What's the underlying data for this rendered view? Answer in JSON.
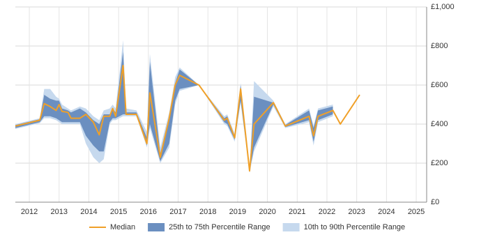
{
  "chart_data": {
    "type": "line",
    "x": [
      2011.53,
      2012.35,
      2012.5,
      2012.7,
      2012.9,
      2013.0,
      2013.1,
      2013.3,
      2013.4,
      2013.7,
      2013.9,
      2014.15,
      2014.35,
      2014.5,
      2014.7,
      2014.8,
      2014.9,
      2015.15,
      2015.25,
      2015.6,
      2015.95,
      2016.05,
      2016.4,
      2016.7,
      2016.9,
      2017.05,
      2017.7,
      2018.55,
      2018.65,
      2018.9,
      2019.1,
      2019.4,
      2019.55,
      2020.2,
      2020.6,
      2021.4,
      2021.55,
      2021.7,
      2022.2,
      2022.45,
      2023.1
    ],
    "series": [
      {
        "name": "10th to 90th Percentile Range",
        "color": "#c6d9ee",
        "low": [
          375,
          405,
          430,
          430,
          420,
          410,
          400,
          400,
          400,
          400,
          300,
          230,
          200,
          220,
          400,
          420,
          420,
          440,
          440,
          440,
          280,
          380,
          200,
          280,
          500,
          570,
          600,
          400,
          390,
          310,
          510,
          150,
          260,
          490,
          380,
          410,
          290,
          410,
          440,
          null,
          null
        ],
        "high": [
          400,
          430,
          580,
          580,
          540,
          530,
          500,
          480,
          470,
          490,
          480,
          440,
          420,
          470,
          480,
          500,
          480,
          830,
          480,
          470,
          360,
          760,
          280,
          460,
          640,
          690,
          600,
          440,
          450,
          350,
          610,
          170,
          620,
          520,
          400,
          480,
          390,
          480,
          500,
          null,
          null
        ]
      },
      {
        "name": "25th to 75th Percentile Range",
        "color": "#6b8fc0",
        "low": [
          380,
          410,
          440,
          440,
          430,
          420,
          410,
          410,
          410,
          410,
          340,
          290,
          260,
          260,
          410,
          430,
          430,
          450,
          450,
          450,
          290,
          400,
          210,
          300,
          520,
          580,
          600,
          410,
          400,
          320,
          520,
          160,
          280,
          500,
          385,
          420,
          310,
          420,
          450,
          null,
          null
        ],
        "high": [
          395,
          425,
          550,
          530,
          520,
          520,
          480,
          470,
          460,
          480,
          460,
          420,
          400,
          450,
          450,
          480,
          460,
          770,
          460,
          460,
          330,
          720,
          250,
          440,
          610,
          680,
          600,
          430,
          440,
          340,
          600,
          160,
          540,
          510,
          395,
          470,
          380,
          470,
          490,
          null,
          null
        ]
      },
      {
        "name": "Median",
        "color": "#f0a028",
        "values": [
          390,
          420,
          505,
          490,
          470,
          500,
          465,
          460,
          430,
          430,
          450,
          410,
          345,
          440,
          440,
          480,
          440,
          700,
          450,
          450,
          300,
          560,
          230,
          430,
          600,
          650,
          600,
          420,
          430,
          330,
          580,
          160,
          400,
          510,
          390,
          440,
          340,
          440,
          470,
          400,
          550
        ]
      }
    ],
    "xlim": [
      2011.53,
      2025.35
    ],
    "xticks": [
      2012,
      2013,
      2014,
      2015,
      2016,
      2017,
      2018,
      2019,
      2020,
      2021,
      2022,
      2023,
      2024,
      2025
    ],
    "ylim": [
      0,
      1000
    ],
    "yticks": [
      {
        "value": 0,
        "label": "£0"
      },
      {
        "value": 200,
        "label": "£200"
      },
      {
        "value": 400,
        "label": "£400"
      },
      {
        "value": 600,
        "label": "£600"
      },
      {
        "value": 800,
        "label": "£800"
      },
      {
        "value": 1000,
        "label": "£1,000"
      }
    ],
    "grid": true
  }
}
